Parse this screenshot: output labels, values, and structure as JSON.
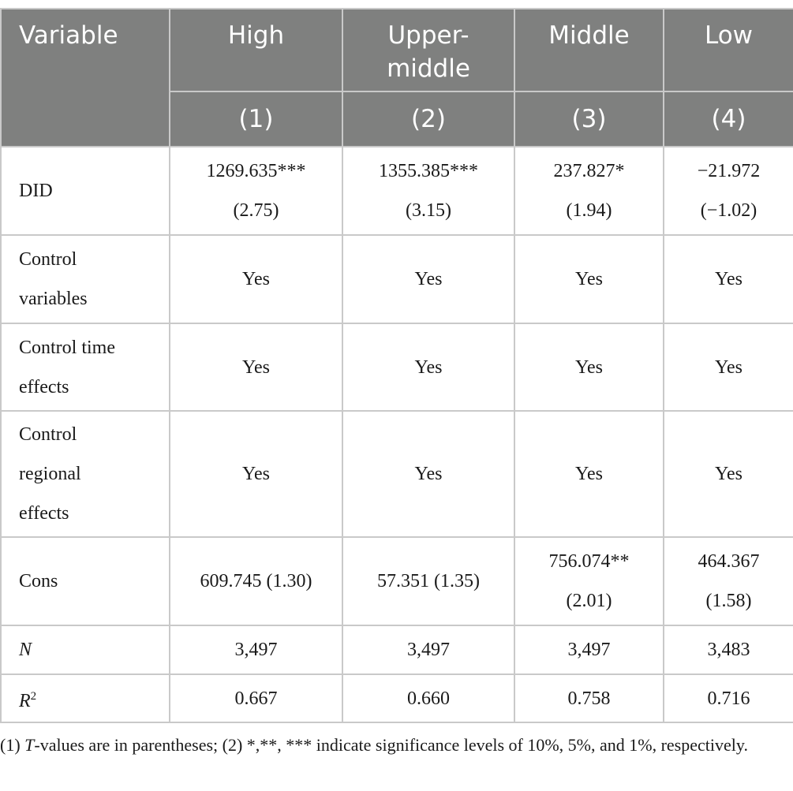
{
  "header": {
    "variable": "Variable",
    "groups": [
      "High",
      "Upper-middle",
      "Middle",
      "Low"
    ],
    "numbers": [
      "(1)",
      "(2)",
      "(3)",
      "(4)"
    ]
  },
  "rows": [
    {
      "label": "DID",
      "cells": [
        [
          "1269.635***",
          "(2.75)"
        ],
        [
          "1355.385***",
          "(3.15)"
        ],
        [
          "237.827*",
          "(1.94)"
        ],
        [
          "−21.972",
          "(−1.02)"
        ]
      ]
    },
    {
      "label": "Control variables",
      "cells": [
        [
          "Yes"
        ],
        [
          "Yes"
        ],
        [
          "Yes"
        ],
        [
          "Yes"
        ]
      ]
    },
    {
      "label": "Control time effects",
      "cells": [
        [
          "Yes"
        ],
        [
          "Yes"
        ],
        [
          "Yes"
        ],
        [
          "Yes"
        ]
      ]
    },
    {
      "label": "Control regional effects",
      "cells": [
        [
          "Yes"
        ],
        [
          "Yes"
        ],
        [
          "Yes"
        ],
        [
          "Yes"
        ]
      ]
    },
    {
      "label": "Cons",
      "cells": [
        [
          "609.745 (1.30)"
        ],
        [
          "57.351 (1.35)"
        ],
        [
          "756.074**",
          "(2.01)"
        ],
        [
          "464.367",
          "(1.58)"
        ]
      ]
    },
    {
      "label": "N",
      "italic": true,
      "cells": [
        [
          "3,497"
        ],
        [
          "3,497"
        ],
        [
          "3,497"
        ],
        [
          "3,483"
        ]
      ]
    },
    {
      "label": "R",
      "sup": "2",
      "italic": true,
      "cells": [
        [
          "0.667"
        ],
        [
          "0.660"
        ],
        [
          "0.758"
        ],
        [
          "0.716"
        ]
      ]
    }
  ],
  "footnote": {
    "p1": "(1) ",
    "t": "T",
    "p2": "-values are in parentheses; (2) *,**, *** indicate significance levels of 10%, 5%, and 1%, respectively."
  },
  "colors": {
    "header_bg": "#7f807f",
    "border": "#c9c9c9"
  }
}
